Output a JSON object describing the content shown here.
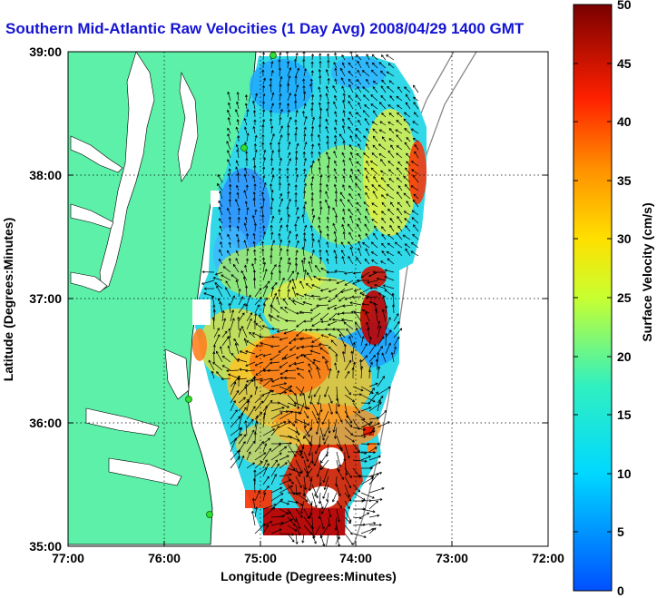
{
  "title": "Southern Mid-Atlantic Raw Velocities (1 Day Avg) 2008/04/29 1400 GMT",
  "x_axis": {
    "label": "Longitude (Degrees:Minutes)",
    "ticks": [
      "77:00",
      "76:00",
      "75:00",
      "74:00",
      "73:00",
      "72:00"
    ]
  },
  "y_axis": {
    "label": "Latitude (Degrees:Minutes)",
    "ticks": [
      "39:00",
      "38:00",
      "37:00",
      "36:00",
      "35:00"
    ]
  },
  "colorbar": {
    "label": "Surface Velocity (cm/s)",
    "ticks": [
      "50",
      "45",
      "40",
      "35",
      "30",
      "25",
      "20",
      "15",
      "10",
      "5",
      "0"
    ],
    "range": [
      0,
      50
    ]
  },
  "colors": {
    "land": "#5cf0a8",
    "coast_stations": "#33dd33",
    "title": "#1414d2",
    "shelf_lines": "#888888"
  },
  "map_extent": {
    "lon": [
      -77,
      -72
    ],
    "lat": [
      35,
      39
    ]
  },
  "grid": true
}
